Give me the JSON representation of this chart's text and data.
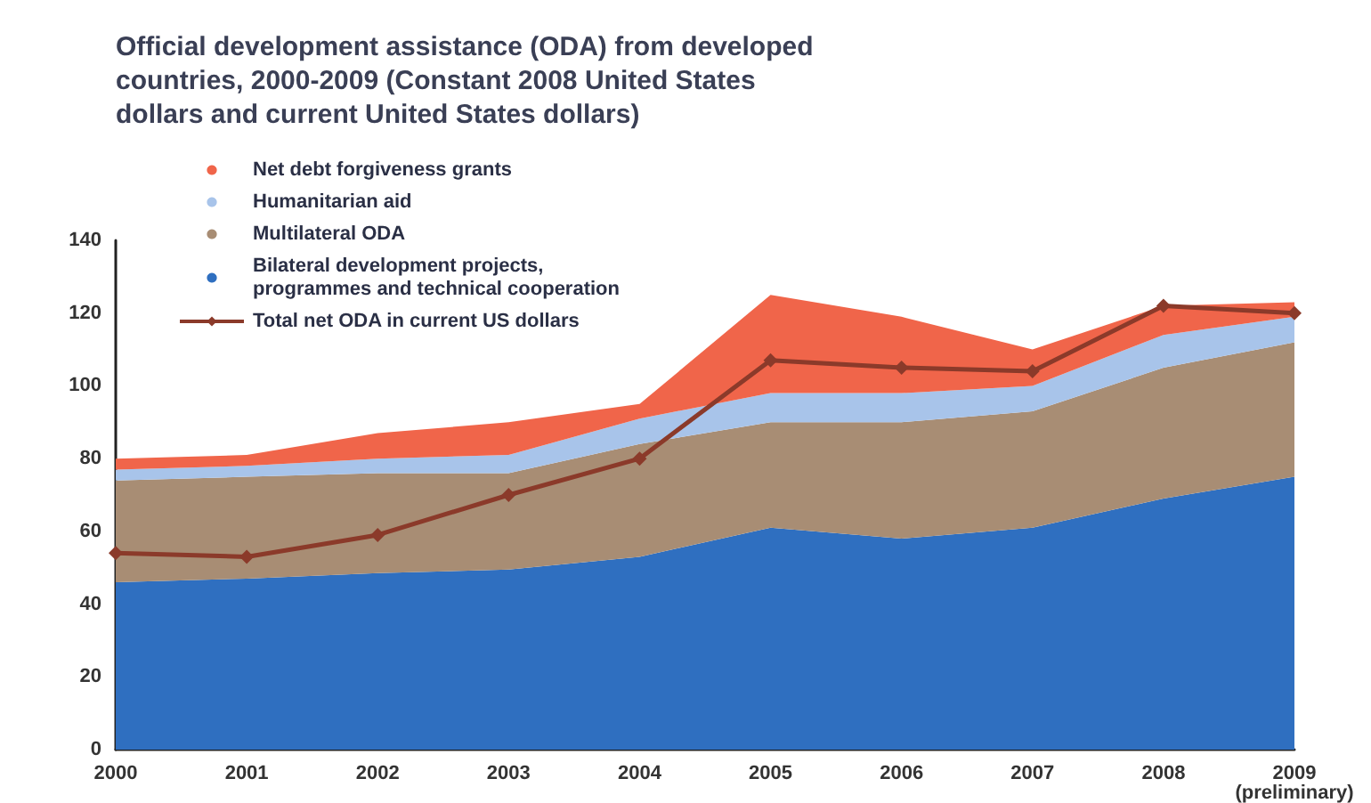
{
  "chart_data": {
    "type": "area",
    "title": "Official development assistance (ODA) from developed\ncountries, 2000-2009 (Constant 2008 United States\ndollars and current United States dollars)",
    "categories": [
      "2000",
      "2001",
      "2002",
      "2003",
      "2004",
      "2005",
      "2006",
      "2007",
      "2008",
      "2009\n(preliminary)"
    ],
    "stacked": true,
    "series": [
      {
        "name": "Bilateral development projects, programmes and technical cooperation",
        "color": "#2f6fc0",
        "values": [
          46,
          47,
          48.5,
          49.5,
          53,
          61,
          58,
          61,
          69,
          75
        ]
      },
      {
        "name": "Multilateral ODA",
        "color": "#a88d74",
        "values": [
          28,
          28,
          27.5,
          26.5,
          31,
          29,
          32,
          32,
          36,
          37
        ]
      },
      {
        "name": "Humanitarian aid",
        "color": "#a8c4ea",
        "values": [
          3,
          3,
          4,
          5,
          7,
          8,
          8,
          7,
          9,
          7
        ]
      },
      {
        "name": "Net debt forgiveness grants",
        "color": "#f0654a",
        "values": [
          3,
          3,
          7,
          9,
          4,
          27,
          21,
          10,
          8,
          4
        ]
      },
      {
        "name": "Total net ODA in current US dollars",
        "type": "line",
        "color": "#8b3a2a",
        "marker": "diamond",
        "values": [
          54,
          53,
          59,
          70,
          80,
          107,
          105,
          104,
          122,
          120
        ]
      }
    ],
    "ylim": [
      0,
      140
    ],
    "yticks": [
      0,
      20,
      40,
      60,
      80,
      100,
      120,
      140
    ],
    "grid": false,
    "legend": "top left"
  }
}
